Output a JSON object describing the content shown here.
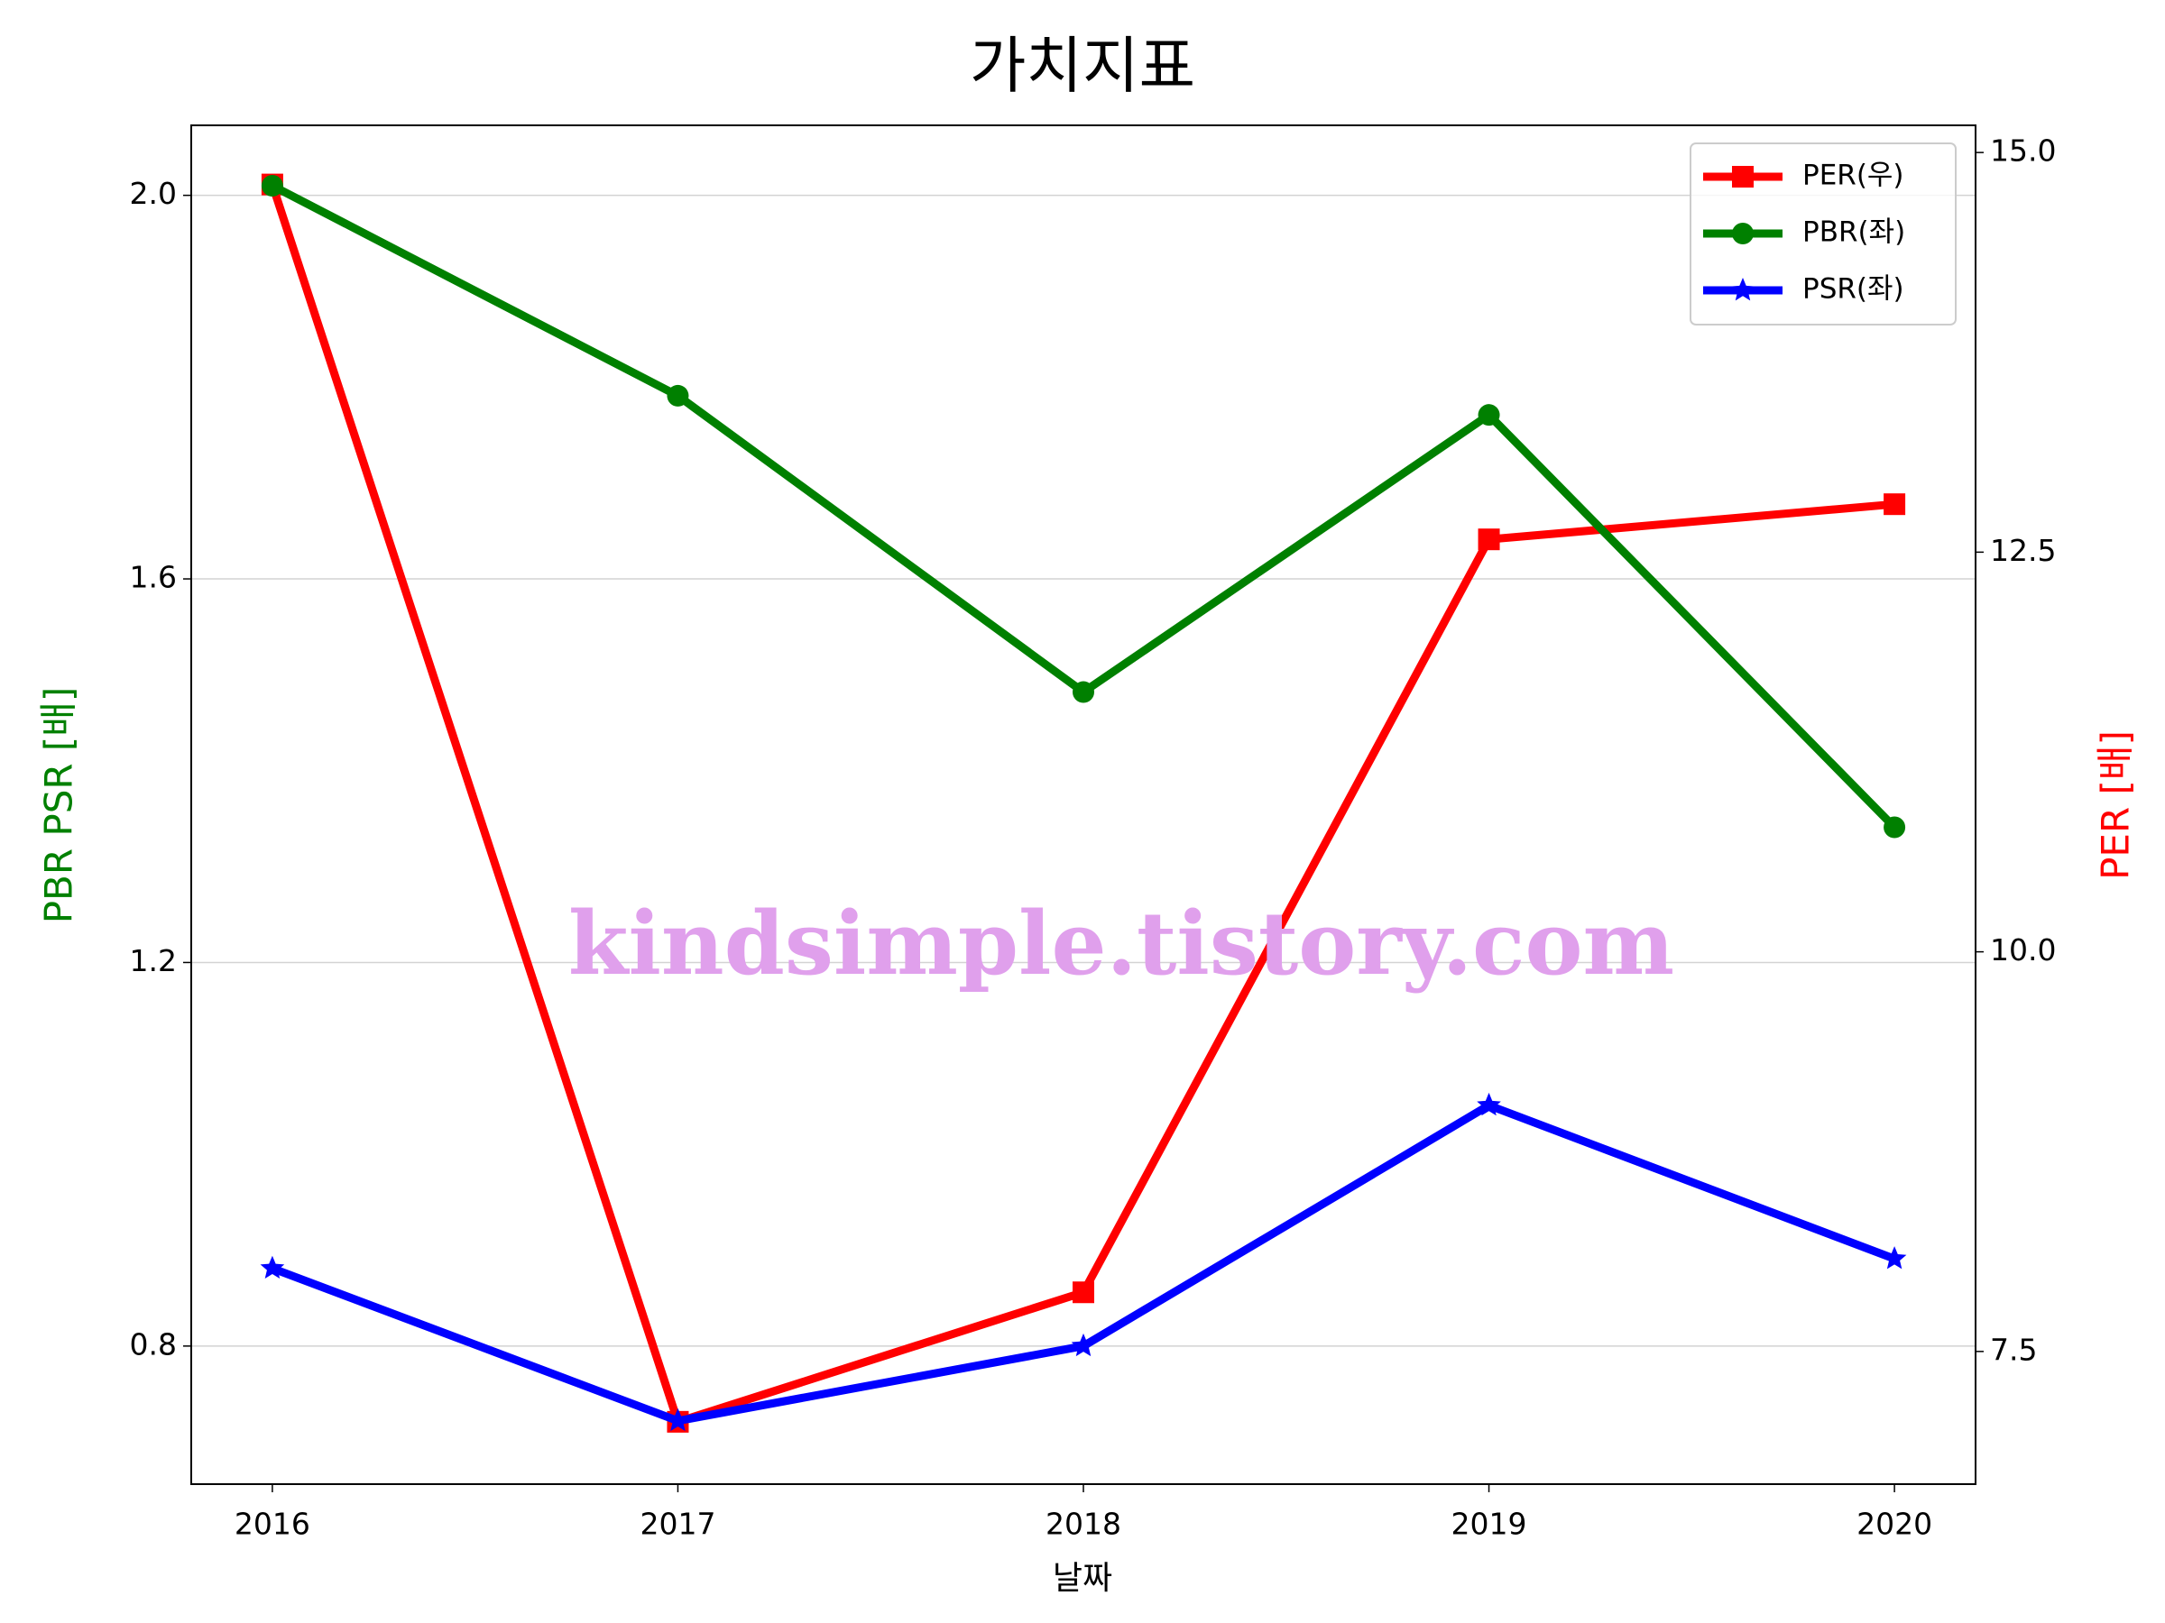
{
  "chart_data": {
    "type": "line",
    "title": "가치지표",
    "xlabel": "날짜",
    "ylabel": "PBR PSR [배]",
    "y2label": "PER [배]",
    "annotation": "kindsimple.tistory.com",
    "x": [
      2016,
      2017,
      2018,
      2019,
      2020
    ],
    "xlim": [
      2015.8,
      2020.2
    ],
    "xticks": [
      2016,
      2017,
      2018,
      2019,
      2020
    ],
    "ylim": [
      0.656,
      2.073
    ],
    "yticks": [
      {
        "value": 0.8,
        "label": "0.8"
      },
      1.2,
      1.6,
      {
        "value": 2,
        "label": "2.0"
      }
    ],
    "y2lim": [
      6.67,
      15.17
    ],
    "y2ticks": [
      7.5,
      {
        "value": 10,
        "label": "10.0"
      },
      12.5,
      {
        "value": 15,
        "label": "15.0"
      }
    ],
    "grid": true,
    "legend": "upper right",
    "series": [
      {
        "name": "PER(우)",
        "color": "#ff0000",
        "marker": "square",
        "axis": "y2",
        "values": [
          14.8,
          7.06,
          7.87,
          12.58,
          12.8
        ]
      },
      {
        "name": "PBR(좌)",
        "color": "#008000",
        "marker": "circle",
        "values": [
          2.01,
          1.791,
          1.482,
          1.771,
          1.341
        ]
      },
      {
        "name": "PSR(좌)",
        "color": "#0000ff",
        "marker": "star",
        "values": [
          0.881,
          0.722,
          0.8,
          1.051,
          0.891
        ]
      }
    ]
  }
}
